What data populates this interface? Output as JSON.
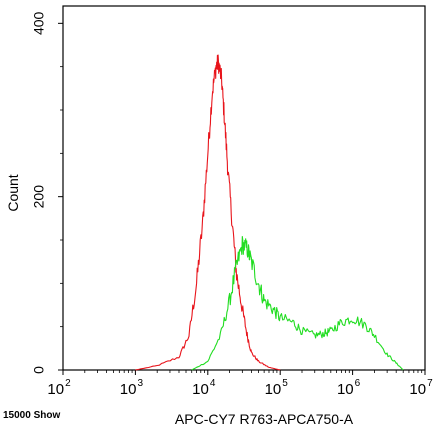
{
  "chart_data": {
    "type": "line",
    "title": "",
    "xlabel": "APC-CY7 R763-APCA750-A",
    "ylabel": "Count",
    "x_scale": "log10",
    "xlim": [
      100,
      10000000
    ],
    "ylim": [
      0,
      420
    ],
    "x_ticks": [
      {
        "value": 100,
        "base": "10",
        "exp": "2"
      },
      {
        "value": 1000,
        "base": "10",
        "exp": "3"
      },
      {
        "value": 10000,
        "base": "10",
        "exp": "4"
      },
      {
        "value": 100000,
        "base": "10",
        "exp": "5"
      },
      {
        "value": 1000000,
        "base": "10",
        "exp": "6"
      },
      {
        "value": 10000000,
        "base": "10",
        "exp": "7"
      }
    ],
    "y_ticks": [
      {
        "value": 0,
        "label": "0"
      },
      {
        "value": 200,
        "label": "200"
      },
      {
        "value": 400,
        "label": "400"
      }
    ],
    "grid": false,
    "footer_note": "15000 Show",
    "series": [
      {
        "color": "#e8141b",
        "x": [
          1000,
          2000,
          4000,
          5500,
          7000,
          8500,
          10000,
          11500,
          13000,
          14000,
          15500,
          17000,
          19000,
          22000,
          25000,
          30000,
          35000,
          40000,
          50000,
          70000,
          100000
        ],
        "y": [
          0,
          5,
          15,
          40,
          100,
          170,
          250,
          320,
          350,
          355,
          335,
          290,
          230,
          165,
          110,
          70,
          40,
          20,
          10,
          3,
          0
        ]
      },
      {
        "color": "#22dd22",
        "x": [
          6000,
          10000,
          15000,
          20000,
          25000,
          30000,
          35000,
          40000,
          50000,
          60000,
          80000,
          100000,
          150000,
          200000,
          300000,
          400000,
          500000,
          700000,
          1000000,
          1500000,
          2000000,
          3000000,
          4000000,
          5000000
        ],
        "y": [
          0,
          10,
          40,
          80,
          120,
          145,
          140,
          125,
          100,
          80,
          70,
          60,
          55,
          45,
          40,
          42,
          45,
          55,
          60,
          52,
          40,
          18,
          8,
          0
        ]
      }
    ]
  }
}
